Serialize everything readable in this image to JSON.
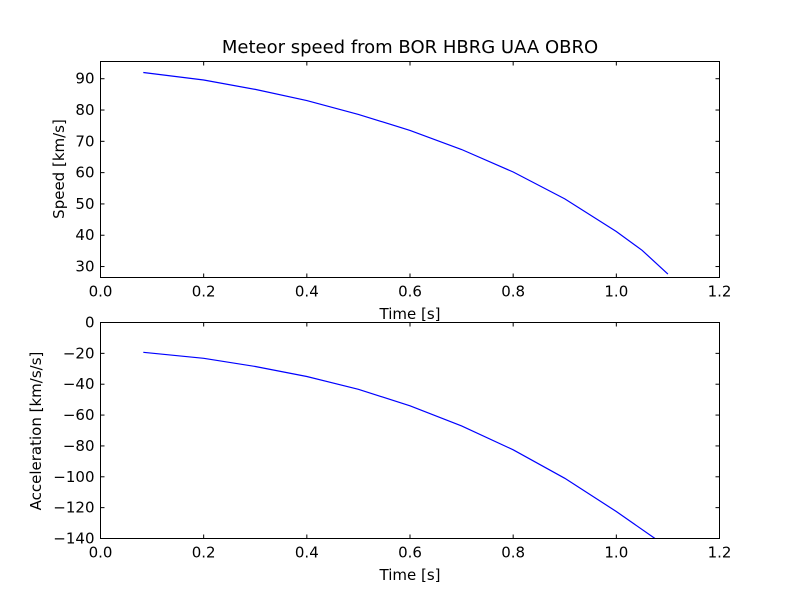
{
  "chart_data": [
    {
      "type": "line",
      "title": "Meteor speed from  BOR HBRG UAA OBRO",
      "xlabel": "Time [s]",
      "ylabel": "Speed [km/s]",
      "xlim": [
        0.0,
        1.2
      ],
      "ylim": [
        26.5,
        95.5
      ],
      "xticks": [
        0.0,
        0.2,
        0.4,
        0.6,
        0.8,
        1.0,
        1.2
      ],
      "xtick_labels": [
        "0.0",
        "0.2",
        "0.4",
        "0.6",
        "0.8",
        "1.0",
        "1.2"
      ],
      "yticks": [
        30,
        40,
        50,
        60,
        70,
        80,
        90
      ],
      "ytick_labels": [
        "30",
        "40",
        "50",
        "60",
        "70",
        "80",
        "90"
      ],
      "grid": false,
      "series": [
        {
          "color": "#0000ff",
          "x": [
            0.083,
            0.2,
            0.3,
            0.4,
            0.5,
            0.6,
            0.7,
            0.8,
            0.9,
            1.0,
            1.05,
            1.1
          ],
          "y": [
            92.0,
            89.6,
            86.6,
            83.0,
            78.6,
            73.5,
            67.4,
            60.2,
            51.6,
            41.2,
            35.2,
            27.6
          ]
        }
      ]
    },
    {
      "type": "line",
      "title": "",
      "xlabel": "Time [s]",
      "ylabel": "Acceleration [km/s/s]",
      "xlim": [
        0.0,
        1.2
      ],
      "ylim": [
        -140,
        0
      ],
      "xticks": [
        0.0,
        0.2,
        0.4,
        0.6,
        0.8,
        1.0,
        1.2
      ],
      "xtick_labels": [
        "0.0",
        "0.2",
        "0.4",
        "0.6",
        "0.8",
        "1.0",
        "1.2"
      ],
      "yticks": [
        -140,
        -120,
        -100,
        -80,
        -60,
        -40,
        -20,
        0
      ],
      "ytick_labels": [
        "−140",
        "−120",
        "−100",
        "−80",
        "−60",
        "−40",
        "−20",
        "0"
      ],
      "grid": false,
      "series": [
        {
          "color": "#0000ff",
          "x": [
            0.083,
            0.2,
            0.3,
            0.4,
            0.5,
            0.6,
            0.7,
            0.8,
            0.9,
            1.0,
            1.075
          ],
          "y": [
            -19.3,
            -23.2,
            -28.5,
            -35.0,
            -43.3,
            -54.0,
            -67.0,
            -82.5,
            -101.0,
            -122.5,
            -140.0
          ]
        }
      ]
    }
  ]
}
